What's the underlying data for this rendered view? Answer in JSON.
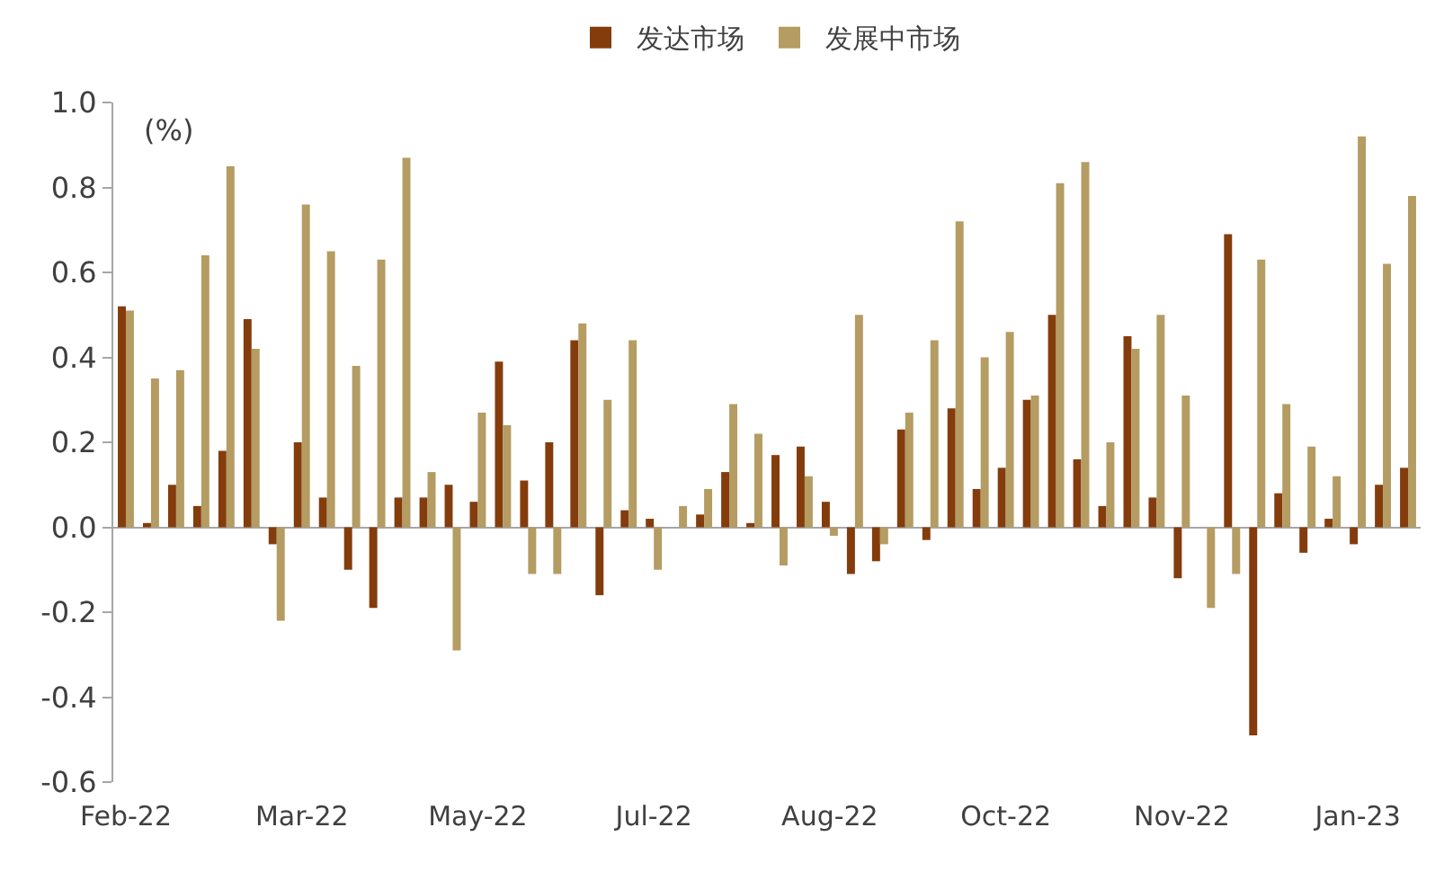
{
  "chart_data": {
    "type": "bar",
    "ylabel": "(%)",
    "legend": "top",
    "categories": [
      "Feb-22",
      null,
      null,
      null,
      null,
      null,
      null,
      "Mar-22",
      null,
      null,
      null,
      null,
      null,
      null,
      "May-22",
      null,
      null,
      null,
      null,
      null,
      null,
      "Jul-22",
      null,
      null,
      null,
      null,
      null,
      null,
      "Aug-22",
      null,
      null,
      null,
      null,
      null,
      null,
      "Oct-22",
      null,
      null,
      null,
      null,
      null,
      null,
      "Nov-22",
      null,
      null,
      null,
      null,
      null,
      null,
      "Jan-23",
      null,
      null
    ],
    "series": [
      {
        "name": "发达市场",
        "color": "#843c0c",
        "values": [
          0.52,
          0.01,
          0.1,
          0.05,
          0.18,
          0.49,
          -0.04,
          0.2,
          0.07,
          -0.1,
          -0.19,
          0.07,
          0.07,
          0.1,
          0.06,
          0.39,
          0.11,
          0.2,
          0.44,
          -0.16,
          0.04,
          0.02,
          0.0,
          0.03,
          0.13,
          0.01,
          0.17,
          0.19,
          0.06,
          -0.11,
          -0.08,
          0.23,
          -0.03,
          0.28,
          0.09,
          0.14,
          0.3,
          0.5,
          0.16,
          0.05,
          0.45,
          0.07,
          -0.12,
          0.0,
          0.69,
          -0.49,
          0.08,
          -0.06,
          0.02,
          -0.04,
          0.1,
          0.14
        ]
      },
      {
        "name": "发展中市场",
        "color": "#b49c62",
        "values": [
          0.51,
          0.35,
          0.37,
          0.64,
          0.85,
          0.42,
          -0.22,
          0.76,
          0.65,
          0.38,
          0.63,
          0.87,
          0.13,
          -0.29,
          0.27,
          0.24,
          -0.11,
          -0.11,
          0.48,
          0.3,
          0.44,
          -0.1,
          0.05,
          0.09,
          0.29,
          0.22,
          -0.09,
          0.12,
          -0.02,
          0.5,
          -0.04,
          0.27,
          0.44,
          0.72,
          0.4,
          0.46,
          0.31,
          0.81,
          0.86,
          0.2,
          0.42,
          0.5,
          0.31,
          -0.19,
          -0.11,
          0.63,
          0.29,
          0.19,
          0.12,
          0.92,
          0.62,
          0.78
        ]
      }
    ],
    "ylim": [
      -0.6,
      1.0
    ],
    "yticks": [
      -0.6,
      -0.4,
      -0.2,
      {
        "value": 0,
        "label": "0.0"
      },
      0.2,
      0.4,
      0.6,
      0.8,
      {
        "value": 1,
        "label": "1.0"
      }
    ]
  }
}
